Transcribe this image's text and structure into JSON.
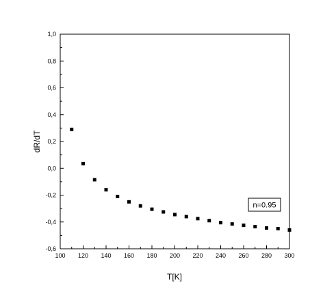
{
  "chart_data": {
    "type": "scatter",
    "title": "",
    "xlabel": "T[K]",
    "ylabel": "dR/dT",
    "xlim": [
      100,
      300
    ],
    "ylim": [
      -0.6,
      1.0
    ],
    "x_ticks": [
      "100",
      "120",
      "140",
      "160",
      "180",
      "200",
      "220",
      "240",
      "260",
      "280",
      "300"
    ],
    "y_ticks": [
      "1,0",
      "0,8",
      "0,6",
      "0,4",
      "0,2",
      "0,0",
      "-0,2",
      "-0,4",
      "-0,6"
    ],
    "marker": "square",
    "marker_color": "#000000",
    "grid": false,
    "annotation": "n=0.95",
    "x": [
      110,
      120,
      130,
      140,
      150,
      160,
      170,
      180,
      190,
      200,
      210,
      220,
      230,
      240,
      250,
      260,
      270,
      280,
      290,
      300
    ],
    "y": [
      0.29,
      0.035,
      -0.085,
      -0.16,
      -0.21,
      -0.25,
      -0.28,
      -0.305,
      -0.325,
      -0.345,
      -0.36,
      -0.375,
      -0.39,
      -0.405,
      -0.415,
      -0.425,
      -0.435,
      -0.445,
      -0.45,
      -0.46
    ]
  }
}
